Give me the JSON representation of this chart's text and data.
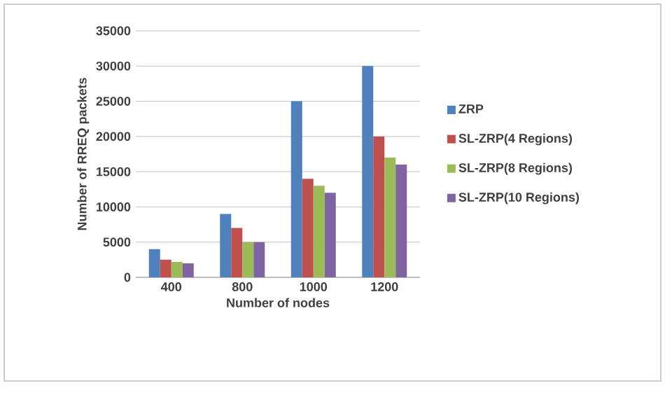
{
  "chart_data": {
    "type": "bar",
    "xlabel": "Number of nodes",
    "ylabel": "Number of RREQ packets",
    "categories": [
      "400",
      "800",
      "1000",
      "1200"
    ],
    "series": [
      {
        "name": "ZRP",
        "color": "#4f81bd",
        "values": [
          4000,
          9000,
          25000,
          30000
        ]
      },
      {
        "name": "SL-ZRP(4 Regions)",
        "color": "#c0504d",
        "values": [
          2500,
          7000,
          14000,
          20000
        ]
      },
      {
        "name": "SL-ZRP(8 Regions)",
        "color": "#9bbb59",
        "values": [
          2200,
          5000,
          13000,
          17000
        ]
      },
      {
        "name": "SL-ZRP(10 Regions)",
        "color": "#8064a2",
        "values": [
          2000,
          5000,
          12000,
          16000
        ]
      }
    ],
    "ylim": [
      0,
      35000
    ],
    "yticks": [
      0,
      5000,
      10000,
      15000,
      20000,
      25000,
      30000,
      35000
    ],
    "grid": "y",
    "legend": "right"
  }
}
